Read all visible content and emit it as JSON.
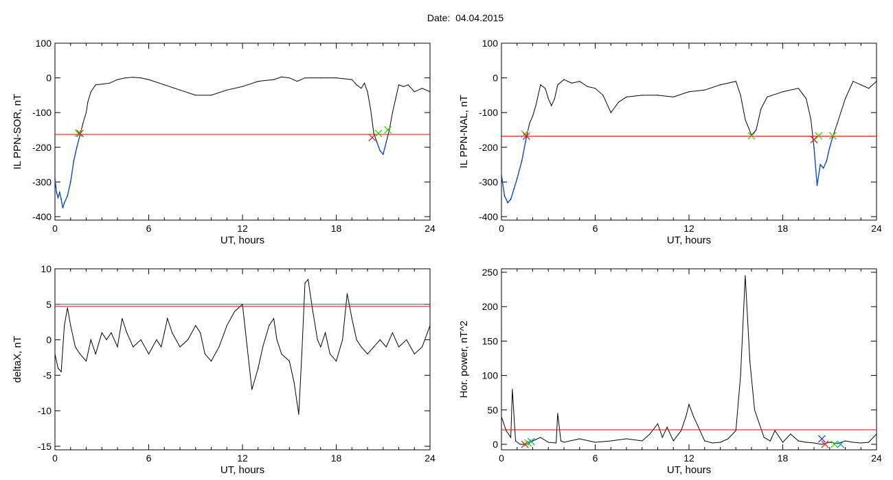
{
  "figure_title": "Date:  04.04.2015",
  "colors": {
    "trace": "#000000",
    "threshold": "#ff0000",
    "threshold2": "#008080",
    "activity": "#1050d0",
    "marker_green": "#33cc00",
    "marker_red": "#dd2222",
    "marker_blue": "#1c3cd0",
    "marker_teal": "#00a0a0"
  },
  "chart_data": [
    {
      "id": "sor",
      "type": "line",
      "xlabel": "UT, hours",
      "ylabel": "IL PPN-SOR, nT",
      "xlim": [
        0,
        24
      ],
      "ylim": [
        -410,
        100
      ],
      "xticks": [
        "0",
        "6",
        "12",
        "18",
        "24"
      ],
      "yticks": [
        "100",
        "0",
        "-100",
        "-200",
        "-300",
        "-400"
      ],
      "threshold": -163,
      "series": [
        {
          "points": [
            [
              0,
              -290
            ],
            [
              0.1,
              -330
            ],
            [
              0.2,
              -345
            ],
            [
              0.3,
              -330
            ],
            [
              0.4,
              -350
            ],
            [
              0.5,
              -375
            ],
            [
              0.6,
              -360
            ],
            [
              0.8,
              -340
            ],
            [
              1.0,
              -300
            ],
            [
              1.2,
              -240
            ],
            [
              1.4,
              -200
            ],
            [
              1.6,
              -165
            ],
            [
              1.8,
              -130
            ],
            [
              2.0,
              -100
            ],
            [
              2.1,
              -70
            ],
            [
              2.3,
              -40
            ],
            [
              2.6,
              -20
            ],
            [
              3.0,
              -18
            ],
            [
              3.5,
              -15
            ],
            [
              4.0,
              -5
            ],
            [
              4.5,
              0
            ],
            [
              5.0,
              2
            ],
            [
              5.5,
              0
            ],
            [
              6.0,
              -5
            ],
            [
              7.0,
              -20
            ],
            [
              8.0,
              -35
            ],
            [
              9.0,
              -50
            ],
            [
              10.0,
              -50
            ],
            [
              11.0,
              -35
            ],
            [
              12.0,
              -25
            ],
            [
              13.0,
              -10
            ],
            [
              14.0,
              -5
            ],
            [
              14.5,
              3
            ],
            [
              15.0,
              0
            ],
            [
              15.5,
              -10
            ],
            [
              16.0,
              0
            ],
            [
              17.0,
              0
            ],
            [
              18.0,
              0
            ],
            [
              19.0,
              -5
            ],
            [
              19.3,
              -20
            ],
            [
              19.6,
              -30
            ],
            [
              19.8,
              -15
            ],
            [
              20.0,
              -40
            ],
            [
              20.2,
              -90
            ],
            [
              20.4,
              -160
            ],
            [
              20.6,
              -185
            ],
            [
              20.8,
              -210
            ],
            [
              21.0,
              -220
            ],
            [
              21.2,
              -185
            ],
            [
              21.4,
              -150
            ],
            [
              21.6,
              -100
            ],
            [
              21.8,
              -60
            ],
            [
              22.0,
              -20
            ],
            [
              22.3,
              -25
            ],
            [
              22.6,
              -20
            ],
            [
              23.0,
              -40
            ],
            [
              23.5,
              -30
            ],
            [
              24.0,
              -40
            ]
          ]
        }
      ],
      "markers": [
        {
          "x": 1.5,
          "y": -159,
          "kind": "green"
        },
        {
          "x": 1.6,
          "y": -160,
          "kind": "red"
        },
        {
          "x": 20.3,
          "y": -172,
          "kind": "red"
        },
        {
          "x": 20.7,
          "y": -160,
          "kind": "green"
        },
        {
          "x": 21.3,
          "y": -150,
          "kind": "green"
        }
      ]
    },
    {
      "id": "nal",
      "type": "line",
      "xlabel": "UT, hours",
      "ylabel": "IL PPN-NAL, nT",
      "xlim": [
        0,
        24
      ],
      "ylim": [
        -410,
        100
      ],
      "xticks": [
        "0",
        "6",
        "12",
        "18",
        "24"
      ],
      "yticks": [
        "100",
        "0",
        "-100",
        "-200",
        "-300",
        "-400"
      ],
      "threshold": -168,
      "series": [
        {
          "points": [
            [
              0,
              -280
            ],
            [
              0.2,
              -340
            ],
            [
              0.4,
              -360
            ],
            [
              0.6,
              -350
            ],
            [
              0.8,
              -320
            ],
            [
              1.0,
              -290
            ],
            [
              1.3,
              -240
            ],
            [
              1.6,
              -170
            ],
            [
              1.8,
              -130
            ],
            [
              2.0,
              -110
            ],
            [
              2.2,
              -80
            ],
            [
              2.5,
              -20
            ],
            [
              2.8,
              -30
            ],
            [
              3.0,
              -60
            ],
            [
              3.2,
              -80
            ],
            [
              3.4,
              -60
            ],
            [
              3.6,
              -20
            ],
            [
              4.0,
              -5
            ],
            [
              4.5,
              -15
            ],
            [
              5.0,
              -10
            ],
            [
              5.5,
              -25
            ],
            [
              6.0,
              -30
            ],
            [
              6.5,
              -50
            ],
            [
              7.0,
              -100
            ],
            [
              7.5,
              -70
            ],
            [
              8.0,
              -55
            ],
            [
              9.0,
              -50
            ],
            [
              10.0,
              -50
            ],
            [
              11.0,
              -55
            ],
            [
              12.0,
              -40
            ],
            [
              13.0,
              -35
            ],
            [
              14.0,
              -20
            ],
            [
              15.0,
              -10
            ],
            [
              15.3,
              -50
            ],
            [
              15.6,
              -120
            ],
            [
              16.0,
              -165
            ],
            [
              16.3,
              -150
            ],
            [
              16.6,
              -90
            ],
            [
              17.0,
              -55
            ],
            [
              18.0,
              -40
            ],
            [
              19.0,
              -30
            ],
            [
              19.5,
              -60
            ],
            [
              19.8,
              -120
            ],
            [
              20.0,
              -200
            ],
            [
              20.2,
              -310
            ],
            [
              20.4,
              -250
            ],
            [
              20.6,
              -260
            ],
            [
              20.8,
              -240
            ],
            [
              21.0,
              -200
            ],
            [
              21.2,
              -170
            ],
            [
              21.5,
              -130
            ],
            [
              22.0,
              -60
            ],
            [
              22.5,
              -10
            ],
            [
              23.0,
              -20
            ],
            [
              23.5,
              -30
            ],
            [
              24.0,
              -10
            ]
          ]
        }
      ],
      "markers": [
        {
          "x": 1.5,
          "y": -162,
          "kind": "green"
        },
        {
          "x": 1.6,
          "y": -168,
          "kind": "red"
        },
        {
          "x": 16.0,
          "y": -167,
          "kind": "green"
        },
        {
          "x": 20.0,
          "y": -178,
          "kind": "red"
        },
        {
          "x": 20.3,
          "y": -167,
          "kind": "green"
        },
        {
          "x": 21.2,
          "y": -167,
          "kind": "green"
        }
      ]
    },
    {
      "id": "deltax",
      "type": "line",
      "xlabel": "UT, hours",
      "ylabel": "deltaX, nT",
      "xlim": [
        0,
        24
      ],
      "ylim": [
        -15.5,
        10
      ],
      "xticks": [
        "0",
        "6",
        "12",
        "18",
        "24"
      ],
      "yticks": [
        "10",
        "5",
        "0",
        "-5",
        "-10",
        "-15"
      ],
      "threshold": 4.7,
      "threshold2": 5.0,
      "series": [
        {
          "points": [
            [
              0,
              -2
            ],
            [
              0.2,
              -4
            ],
            [
              0.4,
              -4.5
            ],
            [
              0.6,
              2
            ],
            [
              0.8,
              4.5
            ],
            [
              1.0,
              2
            ],
            [
              1.3,
              -1
            ],
            [
              1.6,
              -2
            ],
            [
              2.0,
              -3
            ],
            [
              2.3,
              0
            ],
            [
              2.6,
              -2
            ],
            [
              3.0,
              1
            ],
            [
              3.3,
              0
            ],
            [
              3.6,
              1
            ],
            [
              4.0,
              -1
            ],
            [
              4.3,
              3
            ],
            [
              4.6,
              1
            ],
            [
              5.0,
              -1
            ],
            [
              5.5,
              0
            ],
            [
              6.0,
              -2
            ],
            [
              6.5,
              0
            ],
            [
              6.8,
              -1
            ],
            [
              7.0,
              1
            ],
            [
              7.2,
              3
            ],
            [
              7.5,
              1
            ],
            [
              8.0,
              -1
            ],
            [
              8.5,
              0
            ],
            [
              9.0,
              2
            ],
            [
              9.3,
              1
            ],
            [
              9.6,
              -2
            ],
            [
              10.0,
              -3
            ],
            [
              10.5,
              -1
            ],
            [
              11.0,
              2
            ],
            [
              11.5,
              4
            ],
            [
              12.0,
              5
            ],
            [
              12.3,
              -1
            ],
            [
              12.6,
              -7
            ],
            [
              13.0,
              -4
            ],
            [
              13.3,
              -1
            ],
            [
              13.7,
              2
            ],
            [
              14.0,
              3
            ],
            [
              14.2,
              0
            ],
            [
              14.5,
              -2
            ],
            [
              15.0,
              -3
            ],
            [
              15.3,
              -6
            ],
            [
              15.6,
              -10.5
            ],
            [
              15.8,
              -2
            ],
            [
              16.0,
              8
            ],
            [
              16.2,
              8.5
            ],
            [
              16.5,
              4
            ],
            [
              16.8,
              0
            ],
            [
              17.0,
              -1
            ],
            [
              17.3,
              1
            ],
            [
              17.6,
              -2
            ],
            [
              18.0,
              -3
            ],
            [
              18.4,
              0
            ],
            [
              18.7,
              6.5
            ],
            [
              19.0,
              3
            ],
            [
              19.3,
              0
            ],
            [
              19.6,
              -1
            ],
            [
              20.0,
              -2
            ],
            [
              20.4,
              -1
            ],
            [
              20.8,
              0
            ],
            [
              21.2,
              -1
            ],
            [
              21.6,
              1
            ],
            [
              22.0,
              -1
            ],
            [
              22.5,
              0
            ],
            [
              23.0,
              -2
            ],
            [
              23.5,
              -1
            ],
            [
              24.0,
              2
            ]
          ]
        }
      ],
      "markers": []
    },
    {
      "id": "power",
      "type": "line",
      "xlabel": "UT, hours",
      "ylabel": "Hor. power, nT^2",
      "xlim": [
        0,
        24
      ],
      "ylim": [
        -8,
        255
      ],
      "xticks": [
        "0",
        "6",
        "12",
        "18",
        "24"
      ],
      "yticks": [
        "250",
        "200",
        "150",
        "100",
        "50",
        "0"
      ],
      "threshold": 21,
      "series": [
        {
          "points": [
            [
              0,
              40
            ],
            [
              0.3,
              20
            ],
            [
              0.6,
              10
            ],
            [
              0.7,
              80
            ],
            [
              0.9,
              5
            ],
            [
              1.2,
              0
            ],
            [
              1.6,
              0
            ],
            [
              2.0,
              5
            ],
            [
              2.5,
              10
            ],
            [
              3.0,
              3
            ],
            [
              3.5,
              2
            ],
            [
              3.6,
              45
            ],
            [
              3.8,
              5
            ],
            [
              4.0,
              3
            ],
            [
              5.0,
              8
            ],
            [
              6.0,
              3
            ],
            [
              7.0,
              5
            ],
            [
              8.0,
              8
            ],
            [
              9.0,
              5
            ],
            [
              9.5,
              15
            ],
            [
              10.0,
              30
            ],
            [
              10.3,
              10
            ],
            [
              10.6,
              25
            ],
            [
              11.0,
              5
            ],
            [
              11.5,
              20
            ],
            [
              11.8,
              40
            ],
            [
              12.0,
              58
            ],
            [
              12.3,
              40
            ],
            [
              12.6,
              25
            ],
            [
              13.0,
              5
            ],
            [
              13.5,
              2
            ],
            [
              14.0,
              3
            ],
            [
              14.5,
              8
            ],
            [
              15.0,
              20
            ],
            [
              15.3,
              100
            ],
            [
              15.6,
              245
            ],
            [
              15.9,
              120
            ],
            [
              16.2,
              50
            ],
            [
              16.5,
              30
            ],
            [
              16.8,
              10
            ],
            [
              17.2,
              5
            ],
            [
              17.5,
              20
            ],
            [
              18.0,
              3
            ],
            [
              18.5,
              15
            ],
            [
              19.0,
              5
            ],
            [
              19.5,
              3
            ],
            [
              20.0,
              2
            ],
            [
              20.5,
              0
            ],
            [
              21.0,
              3
            ],
            [
              21.5,
              1
            ],
            [
              22.0,
              5
            ],
            [
              22.5,
              3
            ],
            [
              23.0,
              2
            ],
            [
              23.5,
              3
            ],
            [
              24.0,
              15
            ]
          ]
        }
      ],
      "markers": [
        {
          "x": 1.5,
          "y": 0,
          "kind": "red"
        },
        {
          "x": 1.7,
          "y": 2,
          "kind": "green"
        },
        {
          "x": 1.9,
          "y": 4,
          "kind": "teal"
        },
        {
          "x": 20.5,
          "y": 8,
          "kind": "blue"
        },
        {
          "x": 20.7,
          "y": 0,
          "kind": "red"
        },
        {
          "x": 21.3,
          "y": 0,
          "kind": "green"
        },
        {
          "x": 21.7,
          "y": 0,
          "kind": "teal"
        }
      ]
    }
  ]
}
